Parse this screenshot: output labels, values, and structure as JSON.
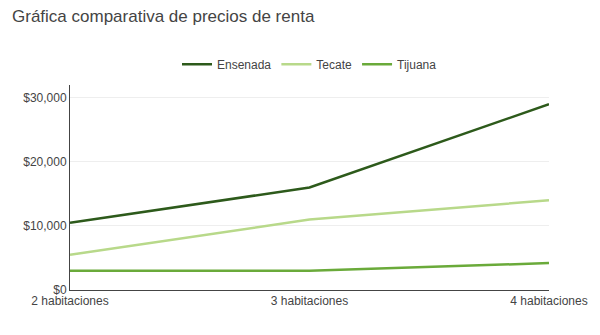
{
  "chart_data": {
    "type": "line",
    "title": "Gráfica comparativa de precios de renta",
    "categories": [
      "2 habitaciones",
      "3 habitaciones",
      "4 habitaciones"
    ],
    "series": [
      {
        "name": "Ensenada",
        "color": "#2d5a1b",
        "values": [
          10500,
          16000,
          29000
        ]
      },
      {
        "name": "Tecate",
        "color": "#b8d98a",
        "values": [
          5500,
          11000,
          14000
        ]
      },
      {
        "name": "Tijuana",
        "color": "#6aaa3a",
        "values": [
          3000,
          3000,
          4200
        ]
      }
    ],
    "ylim": [
      0,
      32000
    ],
    "yticks": [
      {
        "value": 0,
        "label": "$0"
      },
      {
        "value": 10000,
        "label": "$10,000"
      },
      {
        "value": 20000,
        "label": "$20,000"
      },
      {
        "value": 30000,
        "label": "$30,000"
      }
    ],
    "grid": true,
    "legend": "top"
  }
}
